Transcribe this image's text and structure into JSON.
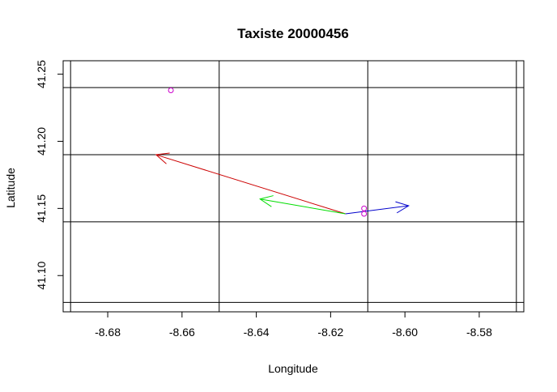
{
  "chart_data": {
    "type": "scatter",
    "title": "Taxiste 20000456",
    "xlabel": "Longitude",
    "ylabel": "Latitude",
    "xlim": [
      -8.692,
      -8.568
    ],
    "ylim": [
      41.073,
      41.26
    ],
    "x_ticks": [
      -8.68,
      -8.66,
      -8.64,
      -8.62,
      -8.6,
      -8.58
    ],
    "x_tick_labels": [
      "-8.68",
      "-8.66",
      "-8.64",
      "-8.62",
      "-8.60",
      "-8.58"
    ],
    "y_ticks": [
      41.1,
      41.15,
      41.2,
      41.25
    ],
    "y_tick_labels": [
      "41.10",
      "41.15",
      "41.20",
      "41.25"
    ],
    "grid": true,
    "grid_x": [
      -8.69,
      -8.65,
      -8.61,
      -8.57
    ],
    "grid_y": [
      41.08,
      41.14,
      41.19,
      41.24
    ],
    "points": [
      {
        "x": -8.663,
        "y": 41.238
      },
      {
        "x": -8.611,
        "y": 41.15
      },
      {
        "x": -8.611,
        "y": 41.146
      }
    ],
    "arrows": [
      {
        "x0": -8.616,
        "y0": 41.146,
        "x1": -8.667,
        "y1": 41.19
      },
      {
        "x0": -8.616,
        "y0": 41.146,
        "x1": -8.639,
        "y1": 41.157
      },
      {
        "x0": -8.616,
        "y0": 41.146,
        "x1": -8.599,
        "y1": 41.152
      }
    ],
    "colors": {
      "points": "#cc00cc",
      "arrows": [
        "#cc0000",
        "#00dd00",
        "#0000cc"
      ],
      "grid": "#000000",
      "axes": "#000000"
    }
  }
}
